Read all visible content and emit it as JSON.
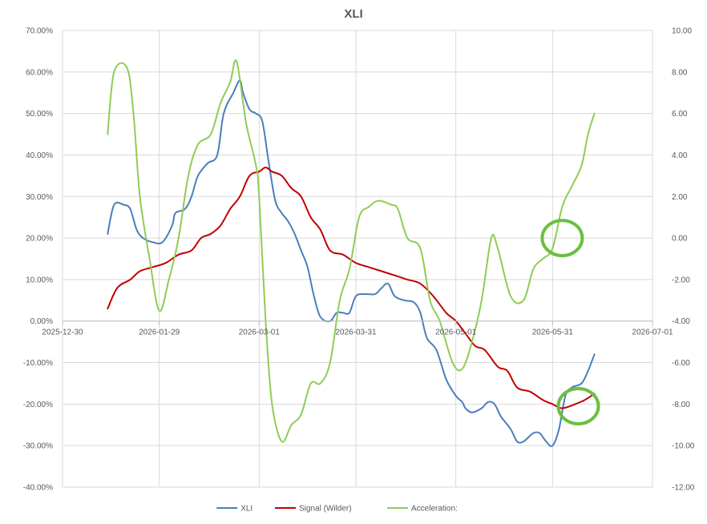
{
  "chart_data": {
    "type": "line",
    "title": "XLI",
    "x_axis": {
      "type": "date",
      "range": [
        "2025-12-30",
        "2026-07-01"
      ],
      "tick_labels": [
        "2025-12-30",
        "2026-01-29",
        "2026-03-01",
        "2026-03-31",
        "2026-05-01",
        "2026-05-31",
        "2026-07-01"
      ],
      "grid": true
    },
    "y_axis_left": {
      "range": [
        -0.4,
        0.7
      ],
      "format": "percent",
      "tick_labels": [
        "70.00%",
        "60.00%",
        "50.00%",
        "40.00%",
        "30.00%",
        "20.00%",
        "10.00%",
        "0.00%",
        "-10.00%",
        "-20.00%",
        "-30.00%",
        "-40.00%"
      ],
      "grid": true
    },
    "y_axis_right": {
      "range": [
        -12,
        10
      ],
      "tick_labels": [
        "10.00",
        "8.00",
        "6.00",
        "4.00",
        "2.00",
        "0.00",
        "-2.00",
        "-4.00",
        "-6.00",
        "-8.00",
        "-10.00",
        "-12.00"
      ]
    },
    "legend_position": "bottom",
    "series": [
      {
        "name": "XLI",
        "color": "#4a7ebb",
        "axis": "left",
        "points": [
          [
            "2026-01-13",
            0.21
          ],
          [
            "2026-01-15",
            0.28
          ],
          [
            "2026-01-18",
            0.28
          ],
          [
            "2026-01-20",
            0.27
          ],
          [
            "2026-01-22",
            0.22
          ],
          [
            "2026-01-24",
            0.2
          ],
          [
            "2026-01-27",
            0.19
          ],
          [
            "2026-01-30",
            0.19
          ],
          [
            "2026-02-02",
            0.23
          ],
          [
            "2026-02-03",
            0.26
          ],
          [
            "2026-02-06",
            0.27
          ],
          [
            "2026-02-08",
            0.3
          ],
          [
            "2026-02-10",
            0.35
          ],
          [
            "2026-02-13",
            0.38
          ],
          [
            "2026-02-16",
            0.4
          ],
          [
            "2026-02-18",
            0.5
          ],
          [
            "2026-02-21",
            0.55
          ],
          [
            "2026-02-23",
            0.58
          ],
          [
            "2026-02-24",
            0.55
          ],
          [
            "2026-02-26",
            0.51
          ],
          [
            "2026-02-28",
            0.5
          ],
          [
            "2026-03-02",
            0.48
          ],
          [
            "2026-03-04",
            0.38
          ],
          [
            "2026-03-06",
            0.29
          ],
          [
            "2026-03-08",
            0.26
          ],
          [
            "2026-03-10",
            0.24
          ],
          [
            "2026-03-12",
            0.21
          ],
          [
            "2026-03-14",
            0.17
          ],
          [
            "2026-03-16",
            0.13
          ],
          [
            "2026-03-18",
            0.06
          ],
          [
            "2026-03-20",
            0.01
          ],
          [
            "2026-03-23",
            0.0
          ],
          [
            "2026-03-25",
            0.02
          ],
          [
            "2026-03-27",
            0.02
          ],
          [
            "2026-03-29",
            0.02
          ],
          [
            "2026-03-31",
            0.06
          ],
          [
            "2026-04-03",
            0.065
          ],
          [
            "2026-04-06",
            0.065
          ],
          [
            "2026-04-08",
            0.08
          ],
          [
            "2026-04-10",
            0.09
          ],
          [
            "2026-04-12",
            0.06
          ],
          [
            "2026-04-15",
            0.05
          ],
          [
            "2026-04-18",
            0.045
          ],
          [
            "2026-04-20",
            0.02
          ],
          [
            "2026-04-22",
            -0.04
          ],
          [
            "2026-04-25",
            -0.07
          ],
          [
            "2026-04-28",
            -0.14
          ],
          [
            "2026-05-01",
            -0.18
          ],
          [
            "2026-05-03",
            -0.195
          ],
          [
            "2026-05-04",
            -0.21
          ],
          [
            "2026-05-06",
            -0.22
          ],
          [
            "2026-05-09",
            -0.21
          ],
          [
            "2026-05-11",
            -0.195
          ],
          [
            "2026-05-13",
            -0.2
          ],
          [
            "2026-05-15",
            -0.23
          ],
          [
            "2026-05-18",
            -0.26
          ],
          [
            "2026-05-20",
            -0.29
          ],
          [
            "2026-05-22",
            -0.29
          ],
          [
            "2026-05-25",
            -0.27
          ],
          [
            "2026-05-27",
            -0.27
          ],
          [
            "2026-05-29",
            -0.29
          ],
          [
            "2026-05-31",
            -0.3
          ],
          [
            "2026-06-02",
            -0.26
          ],
          [
            "2026-06-04",
            -0.18
          ],
          [
            "2026-06-06",
            -0.16
          ],
          [
            "2026-06-09",
            -0.15
          ],
          [
            "2026-06-11",
            -0.12
          ],
          [
            "2026-06-13",
            -0.08
          ]
        ]
      },
      {
        "name": "Signal (Wilder)",
        "color": "#c00000",
        "axis": "left",
        "points": [
          [
            "2026-01-13",
            0.03
          ],
          [
            "2026-01-16",
            0.08
          ],
          [
            "2026-01-20",
            0.1
          ],
          [
            "2026-01-23",
            0.12
          ],
          [
            "2026-01-27",
            0.13
          ],
          [
            "2026-01-31",
            0.14
          ],
          [
            "2026-02-04",
            0.16
          ],
          [
            "2026-02-08",
            0.17
          ],
          [
            "2026-02-11",
            0.2
          ],
          [
            "2026-02-14",
            0.21
          ],
          [
            "2026-02-17",
            0.23
          ],
          [
            "2026-02-20",
            0.27
          ],
          [
            "2026-02-23",
            0.3
          ],
          [
            "2026-02-26",
            0.35
          ],
          [
            "2026-03-01",
            0.36
          ],
          [
            "2026-03-03",
            0.37
          ],
          [
            "2026-03-05",
            0.36
          ],
          [
            "2026-03-08",
            0.35
          ],
          [
            "2026-03-11",
            0.32
          ],
          [
            "2026-03-14",
            0.3
          ],
          [
            "2026-03-17",
            0.25
          ],
          [
            "2026-03-20",
            0.22
          ],
          [
            "2026-03-23",
            0.17
          ],
          [
            "2026-03-27",
            0.16
          ],
          [
            "2026-03-31",
            0.14
          ],
          [
            "2026-04-04",
            0.13
          ],
          [
            "2026-04-08",
            0.12
          ],
          [
            "2026-04-12",
            0.11
          ],
          [
            "2026-04-16",
            0.1
          ],
          [
            "2026-04-20",
            0.09
          ],
          [
            "2026-04-24",
            0.06
          ],
          [
            "2026-04-28",
            0.02
          ],
          [
            "2026-05-01",
            0.0
          ],
          [
            "2026-05-04",
            -0.03
          ],
          [
            "2026-05-07",
            -0.06
          ],
          [
            "2026-05-10",
            -0.07
          ],
          [
            "2026-05-14",
            -0.11
          ],
          [
            "2026-05-17",
            -0.12
          ],
          [
            "2026-05-20",
            -0.16
          ],
          [
            "2026-05-24",
            -0.17
          ],
          [
            "2026-05-28",
            -0.19
          ],
          [
            "2026-05-31",
            -0.2
          ],
          [
            "2026-06-03",
            -0.21
          ],
          [
            "2026-06-07",
            -0.2
          ],
          [
            "2026-06-10",
            -0.19
          ],
          [
            "2026-06-13",
            -0.175
          ]
        ]
      },
      {
        "name": "Acceleration:",
        "color": "#8fcc55",
        "axis": "right",
        "points": [
          [
            "2026-01-13",
            5.0
          ],
          [
            "2026-01-15",
            8.0
          ],
          [
            "2026-01-19",
            8.2
          ],
          [
            "2026-01-21",
            6.0
          ],
          [
            "2026-01-23",
            2.0
          ],
          [
            "2026-01-26",
            -1.0
          ],
          [
            "2026-01-29",
            -3.5
          ],
          [
            "2026-02-01",
            -2.0
          ],
          [
            "2026-02-04",
            0.0
          ],
          [
            "2026-02-07",
            3.0
          ],
          [
            "2026-02-10",
            4.5
          ],
          [
            "2026-02-14",
            5.0
          ],
          [
            "2026-02-17",
            6.5
          ],
          [
            "2026-02-20",
            7.5
          ],
          [
            "2026-02-22",
            8.5
          ],
          [
            "2026-02-25",
            5.5
          ],
          [
            "2026-02-28",
            3.5
          ],
          [
            "2026-03-01",
            2.0
          ],
          [
            "2026-03-03",
            -4.0
          ],
          [
            "2026-03-05",
            -8.0
          ],
          [
            "2026-03-08",
            -9.8
          ],
          [
            "2026-03-11",
            -9.0
          ],
          [
            "2026-03-14",
            -8.5
          ],
          [
            "2026-03-17",
            -7.0
          ],
          [
            "2026-03-20",
            -7.0
          ],
          [
            "2026-03-23",
            -6.0
          ],
          [
            "2026-03-26",
            -3.0
          ],
          [
            "2026-03-29",
            -1.5
          ],
          [
            "2026-04-01",
            1.0
          ],
          [
            "2026-04-04",
            1.5
          ],
          [
            "2026-04-07",
            1.8
          ],
          [
            "2026-04-11",
            1.6
          ],
          [
            "2026-04-13",
            1.4
          ],
          [
            "2026-04-16",
            0.0
          ],
          [
            "2026-04-20",
            -0.5
          ],
          [
            "2026-04-23",
            -3.0
          ],
          [
            "2026-04-26",
            -4.0
          ],
          [
            "2026-04-30",
            -6.0
          ],
          [
            "2026-05-03",
            -6.3
          ],
          [
            "2026-05-06",
            -5.0
          ],
          [
            "2026-05-09",
            -3.0
          ],
          [
            "2026-05-12",
            0.0
          ],
          [
            "2026-05-14",
            -0.5
          ],
          [
            "2026-05-18",
            -2.8
          ],
          [
            "2026-05-22",
            -3.0
          ],
          [
            "2026-05-25",
            -1.5
          ],
          [
            "2026-05-28",
            -1.0
          ],
          [
            "2026-05-31",
            -0.5
          ],
          [
            "2026-06-03",
            1.5
          ],
          [
            "2026-06-06",
            2.5
          ],
          [
            "2026-06-09",
            3.5
          ],
          [
            "2026-06-11",
            5.0
          ],
          [
            "2026-06-13",
            6.0
          ]
        ]
      }
    ],
    "annotations": [
      {
        "type": "circle",
        "color": "#6abf40",
        "axis": "right",
        "center": [
          "2026-06-03",
          0.0
        ]
      },
      {
        "type": "circle",
        "color": "#6abf40",
        "axis": "left",
        "center": [
          "2026-06-08",
          -0.205
        ]
      }
    ]
  }
}
